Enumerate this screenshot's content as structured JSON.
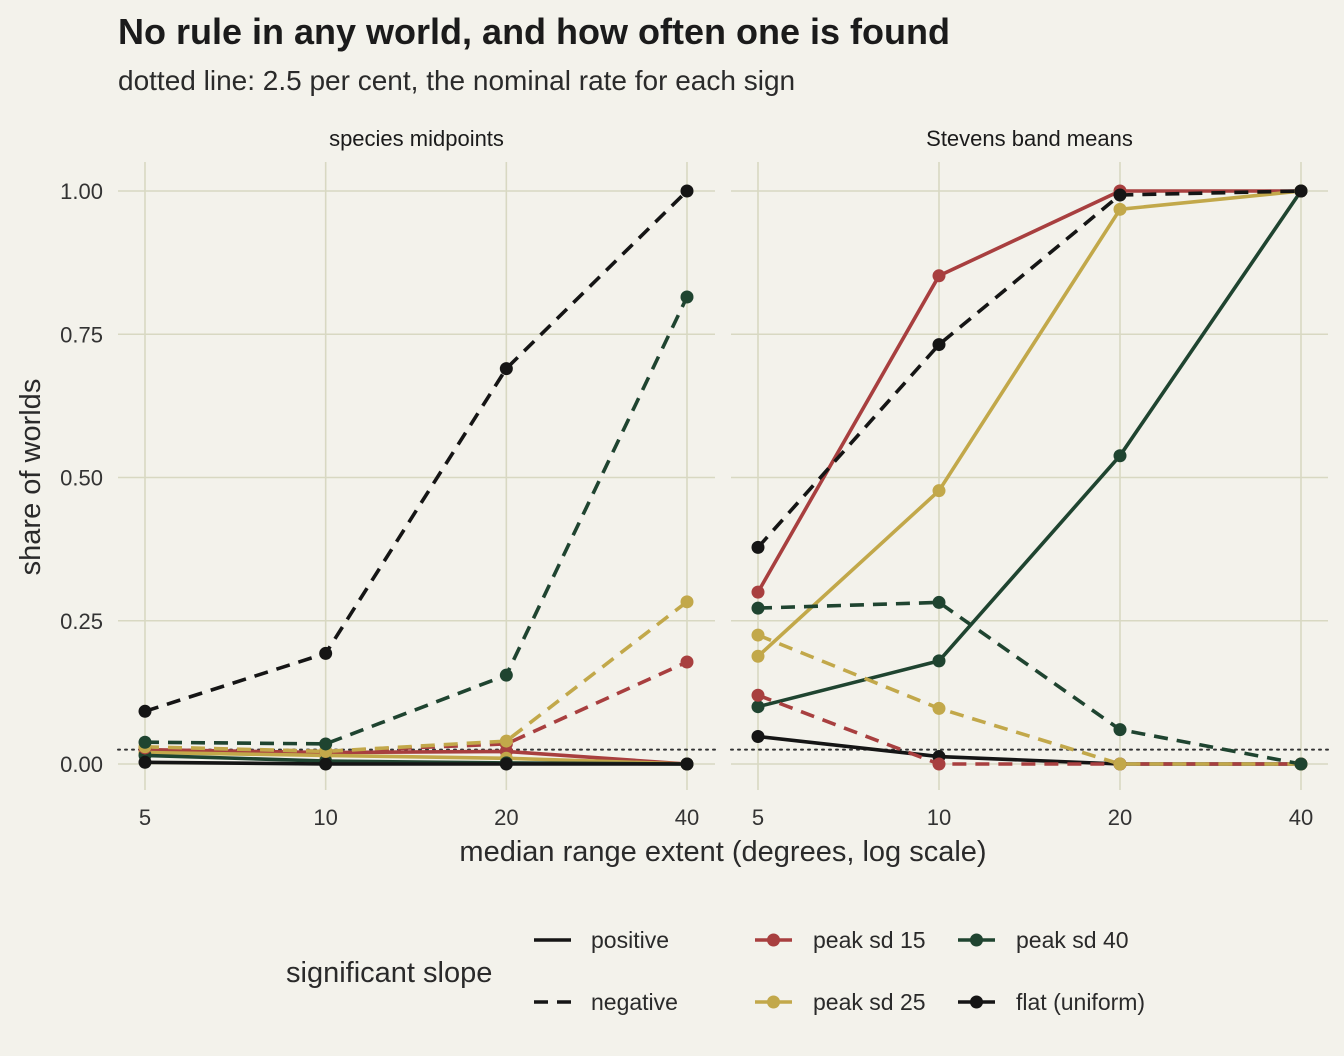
{
  "title": "No rule in any world, and how often one is found",
  "subtitle": "dotted line: 2.5 per cent, the nominal rate for each sign",
  "chart_data": {
    "type": "line",
    "x_label": "median range extent (degrees, log scale)",
    "y_label": "share of worlds",
    "x_scale": "log",
    "x": [
      5,
      10,
      20,
      40
    ],
    "x_ticks": [
      "5",
      "10",
      "20",
      "40"
    ],
    "y_ticks": [
      "0.00",
      "0.25",
      "0.50",
      "0.75",
      "1.00"
    ],
    "ylim": [
      0,
      1
    ],
    "reference_line": {
      "y": 0.025,
      "style": "dotted"
    },
    "grid": true,
    "legend_placement": "bottom",
    "linetype_legend": {
      "title": "significant slope",
      "entries": [
        {
          "label": "positive",
          "dash": "solid"
        },
        {
          "label": "negative",
          "dash": "dashed"
        }
      ]
    },
    "color_legend": {
      "entries": [
        {
          "key": "sd15",
          "label": "peak sd 15",
          "color": "#a83f3f"
        },
        {
          "key": "sd25",
          "label": "peak sd 25",
          "color": "#c2a84a"
        },
        {
          "key": "sd40",
          "label": "peak sd 40",
          "color": "#1f4430"
        },
        {
          "key": "flat",
          "label": "flat (uniform)",
          "color": "#151515"
        }
      ]
    },
    "panels": [
      {
        "label": "species midpoints",
        "series": [
          {
            "color_key": "sd15",
            "slope": "positive",
            "values": [
              0.025,
              0.02,
              0.022,
              0.0
            ]
          },
          {
            "color_key": "sd25",
            "slope": "positive",
            "values": [
              0.02,
              0.015,
              0.01,
              0.0
            ]
          },
          {
            "color_key": "sd40",
            "slope": "positive",
            "values": [
              0.015,
              0.005,
              0.002,
              0.0
            ]
          },
          {
            "color_key": "flat",
            "slope": "positive",
            "values": [
              0.003,
              0.0,
              0.0,
              0.0
            ]
          },
          {
            "color_key": "sd15",
            "slope": "negative",
            "values": [
              0.028,
              0.022,
              0.035,
              0.178
            ]
          },
          {
            "color_key": "sd25",
            "slope": "negative",
            "values": [
              0.03,
              0.022,
              0.04,
              0.283
            ]
          },
          {
            "color_key": "sd40",
            "slope": "negative",
            "values": [
              0.038,
              0.035,
              0.155,
              0.815
            ]
          },
          {
            "color_key": "flat",
            "slope": "negative",
            "values": [
              0.092,
              0.193,
              0.69,
              1.0
            ]
          }
        ]
      },
      {
        "label": "Stevens band means",
        "series": [
          {
            "color_key": "sd15",
            "slope": "positive",
            "values": [
              0.3,
              0.852,
              1.0,
              1.0
            ]
          },
          {
            "color_key": "sd25",
            "slope": "positive",
            "values": [
              0.188,
              0.477,
              0.968,
              1.0
            ]
          },
          {
            "color_key": "sd40",
            "slope": "positive",
            "values": [
              0.1,
              0.18,
              0.538,
              1.0
            ]
          },
          {
            "color_key": "flat",
            "slope": "positive",
            "values": [
              0.048,
              0.013,
              0.0,
              0.0
            ]
          },
          {
            "color_key": "sd15",
            "slope": "negative",
            "values": [
              0.12,
              0.0,
              0.0,
              0.0
            ]
          },
          {
            "color_key": "sd25",
            "slope": "negative",
            "values": [
              0.225,
              0.097,
              0.0,
              0.0
            ]
          },
          {
            "color_key": "sd40",
            "slope": "negative",
            "values": [
              0.272,
              0.282,
              0.06,
              0.0
            ]
          },
          {
            "color_key": "flat",
            "slope": "negative",
            "values": [
              0.378,
              0.732,
              0.993,
              1.0
            ]
          }
        ]
      }
    ]
  }
}
